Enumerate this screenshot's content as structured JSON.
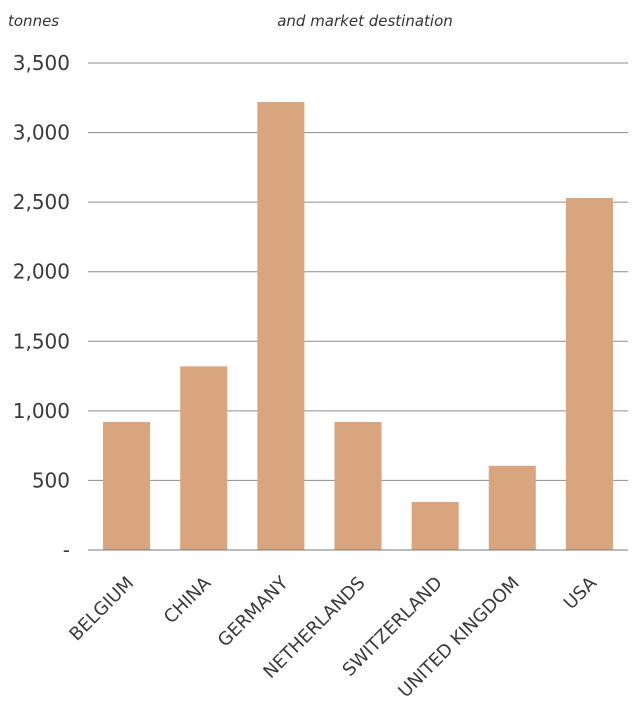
{
  "chart_data": {
    "type": "bar",
    "title": "",
    "subtitle": "and market destination",
    "ylabel": "tonnes",
    "xlabel": "",
    "categories": [
      "BELGIUM",
      "CHINA",
      "GERMANY",
      "NETHERLANDS",
      "SWITZERLAND",
      "UNITED KINGDOM",
      "USA"
    ],
    "values": [
      920,
      1320,
      3220,
      920,
      345,
      605,
      2530
    ],
    "ylim": [
      0,
      3500
    ],
    "yticks": [
      0,
      500,
      1000,
      1500,
      2000,
      2500,
      3000,
      3500
    ],
    "ytick_labels": [
      "-",
      "500",
      "1,000",
      "1,500",
      "2,000",
      "2,500",
      "3,000",
      "3,500"
    ],
    "grid": true,
    "legend": "none",
    "bar_color": "#d9a57e"
  }
}
